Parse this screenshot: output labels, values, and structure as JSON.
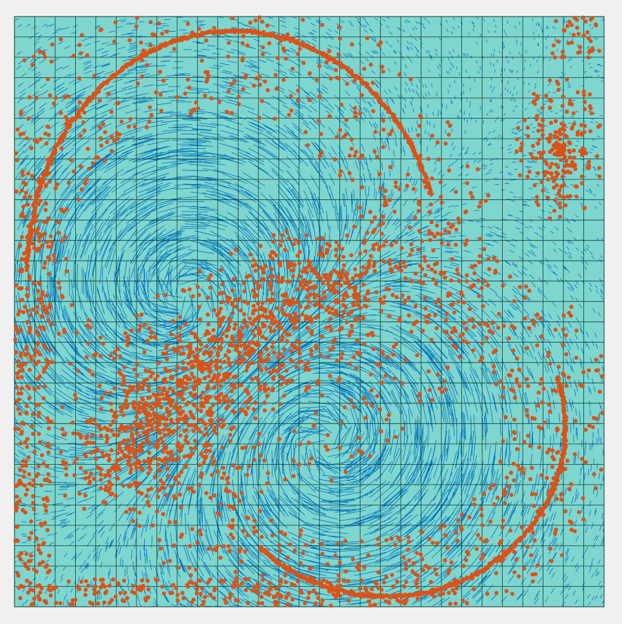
{
  "figure": {
    "description_kind": "flow-field-visualization",
    "colors": {
      "page_background": "#f0f0f0",
      "domain_fill": "#7fd6cf",
      "grid_lines": "#0b3b36",
      "vectors": "#0072bd",
      "particles": "#d95319"
    },
    "grid": {
      "columns": 29,
      "rows": 29
    },
    "vortices": [
      {
        "name": "upper-left-vortex",
        "rotation": "counterclockwise"
      },
      {
        "name": "lower-right-vortex",
        "rotation": "clockwise"
      }
    ]
  }
}
